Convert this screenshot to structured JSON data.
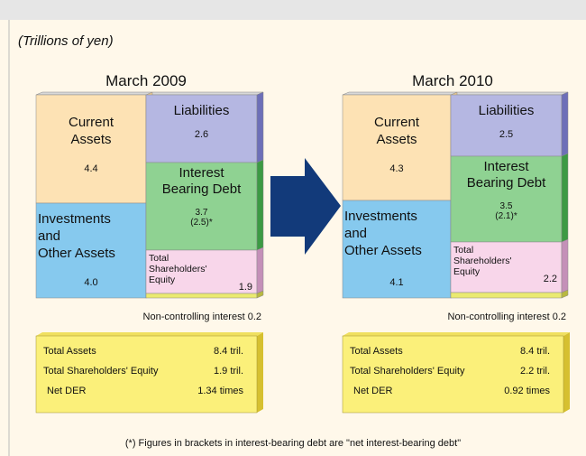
{
  "unit": "(Trillions of yen)",
  "periods": [
    {
      "title": "March 2009",
      "current_assets": {
        "label": [
          "Current",
          "Assets"
        ],
        "value": "4.4"
      },
      "investments": {
        "label": [
          "Investments",
          "and",
          "Other Assets"
        ],
        "value": "4.0"
      },
      "liabilities": {
        "label": [
          "Liabilities"
        ],
        "value": "2.6"
      },
      "interest_bearing_debt": {
        "label": [
          "Interest",
          "Bearing Debt"
        ],
        "value": [
          "3.7",
          "(2.5)*"
        ]
      },
      "equity": {
        "label": [
          "Total",
          "Shareholders'",
          "Equity"
        ],
        "value": "1.9"
      },
      "non_controlling": "Non-controlling interest 0.2",
      "summary": [
        [
          "Total Assets",
          "8.4 tril."
        ],
        [
          "Total Shareholders' Equity",
          "1.9 tril."
        ],
        [
          "Net DER",
          "1.34 times"
        ]
      ]
    },
    {
      "title": "March 2010",
      "current_assets": {
        "label": [
          "Current",
          "Assets"
        ],
        "value": "4.3"
      },
      "investments": {
        "label": [
          "Investments",
          "and",
          "Other Assets"
        ],
        "value": "4.1"
      },
      "liabilities": {
        "label": [
          "Liabilities"
        ],
        "value": "2.5"
      },
      "interest_bearing_debt": {
        "label": [
          "Interest",
          "Bearing Debt"
        ],
        "value": [
          "3.5",
          "(2.1)*"
        ]
      },
      "equity": {
        "label": [
          "Total",
          "Shareholders'",
          "Equity"
        ],
        "value": "2.2"
      },
      "non_controlling": "Non-controlling interest 0.2",
      "summary": [
        [
          "Total Assets",
          "8.4 tril."
        ],
        [
          "Total Shareholders' Equity",
          "2.2 tril."
        ],
        [
          "Net DER",
          "0.92 times"
        ]
      ]
    }
  ],
  "footnote": "(*) Figures in brackets in interest-bearing debt are \"net interest-bearing debt\""
}
